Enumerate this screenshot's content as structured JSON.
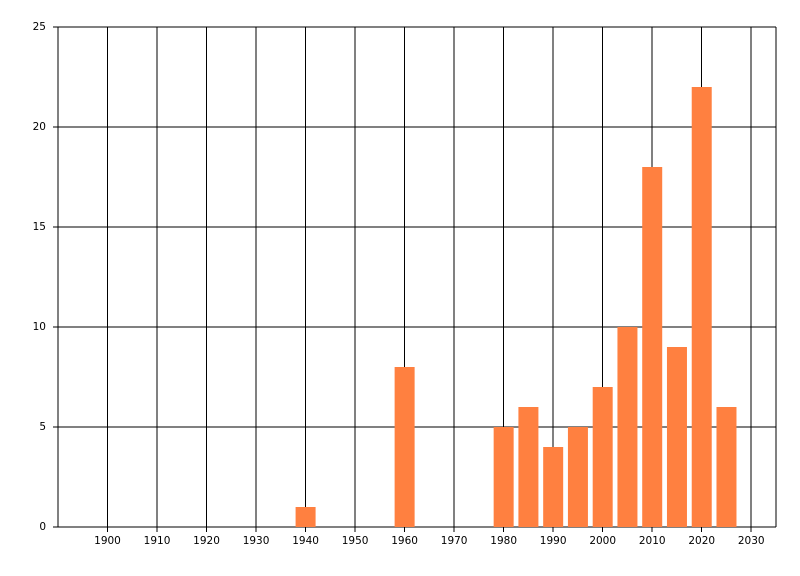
{
  "chart_data": {
    "type": "bar",
    "x": [
      1940,
      1960,
      1980,
      1985,
      1990,
      1995,
      2000,
      2005,
      2010,
      2015,
      2020,
      2025
    ],
    "values": [
      1,
      8,
      5,
      6,
      4,
      5,
      7,
      10,
      18,
      9,
      22,
      6
    ],
    "color": "#ff8040",
    "xlim": [
      1890,
      2035
    ],
    "xticks": [
      1900,
      1910,
      1920,
      1930,
      1940,
      1950,
      1960,
      1970,
      1980,
      1990,
      2000,
      2010,
      2020,
      2030
    ],
    "ylim": [
      0,
      25
    ],
    "yticks": [
      0,
      5,
      10,
      15,
      20,
      25
    ],
    "grid": true
  }
}
